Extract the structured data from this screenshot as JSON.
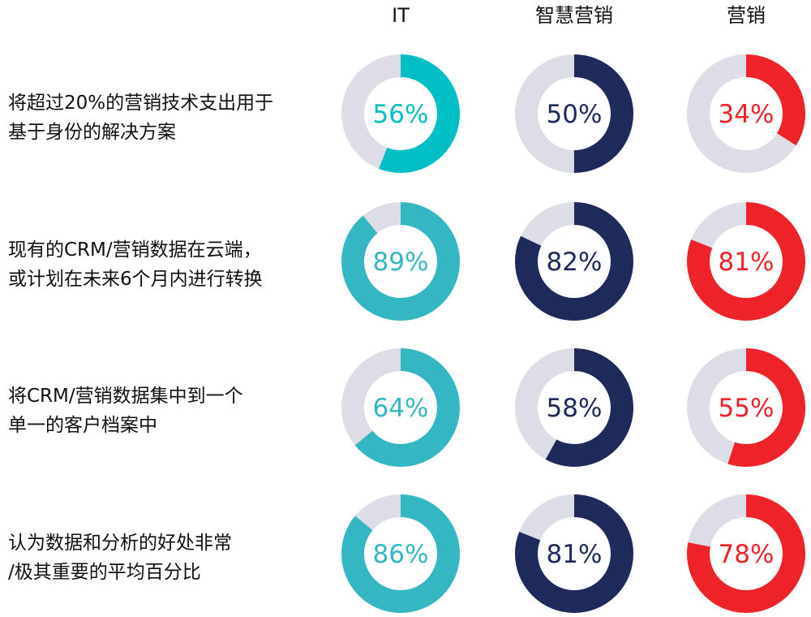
{
  "chart_data": {
    "type": "donut-grid",
    "columns": [
      "IT",
      "智慧营销",
      "营销"
    ],
    "rows": [
      {
        "label_lines": [
          "将超过20%的营销技术支出用于",
          "基于身份的解决方案"
        ],
        "values": [
          56,
          50,
          34
        ]
      },
      {
        "label_lines": [
          "现有的CRM/营销数据在云端，",
          "或计划在未来6个月内进行转换"
        ],
        "values": [
          89,
          82,
          81
        ]
      },
      {
        "label_lines": [
          "将CRM/营销数据集中到一个",
          "单一的客户档案中"
        ],
        "values": [
          64,
          58,
          55
        ]
      },
      {
        "label_lines": [
          "认为数据和分析的好处非常",
          "/极其重要的平均百分比"
        ],
        "values": [
          86,
          81,
          78
        ]
      }
    ],
    "value_suffix": "%",
    "colors": {
      "track": "#dcdde6",
      "IT_first_row": "#00bfc4",
      "IT": "#35b6c3",
      "智慧营销": "#1e2a5a",
      "营销": "#ee2229"
    }
  }
}
